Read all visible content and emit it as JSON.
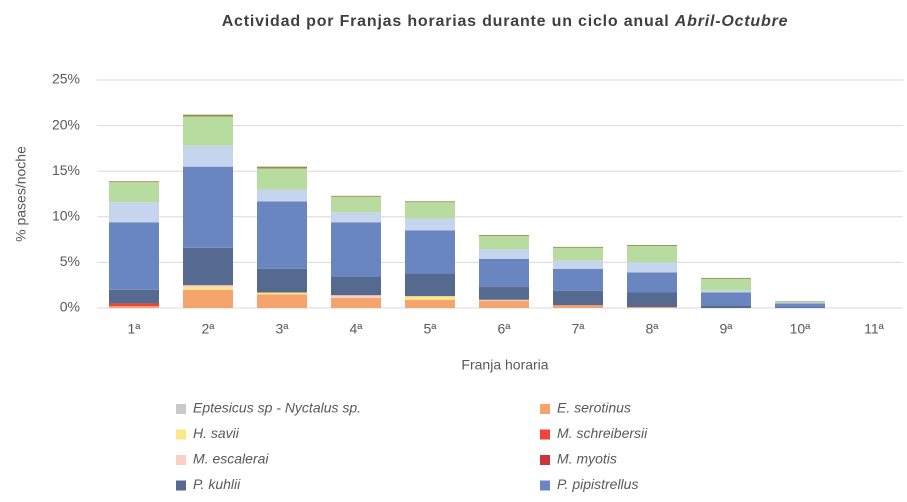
{
  "chart_data": {
    "type": "bar",
    "stacked": true,
    "title": [
      "Actividad por Franjas horarias durante un ciclo anual",
      "Abril-Octubre"
    ],
    "y_label": "% pases/noche",
    "x_label": "Franja horaria",
    "categories": [
      "1ª",
      "2ª",
      "3ª",
      "4ª",
      "5ª",
      "6ª",
      "7ª",
      "8ª",
      "9ª",
      "10ª",
      "11ª"
    ],
    "ylim": [
      0,
      25
    ],
    "yticks": [
      {
        "value": 0,
        "label": "0%"
      },
      {
        "value": 5,
        "label": "5%"
      },
      {
        "value": 10,
        "label": "10%"
      },
      {
        "value": 15,
        "label": "15%"
      },
      {
        "value": 20,
        "label": "20%"
      },
      {
        "value": 25,
        "label": "25%"
      }
    ],
    "grid": true,
    "series": [
      {
        "name": "Eptesicus sp - Nyctalus sp.",
        "color": "#c9c9c9",
        "values": [
          0,
          0,
          0,
          0,
          0,
          0,
          0,
          0,
          0,
          0,
          0
        ]
      },
      {
        "name": "E. serotinus",
        "color": "#f4a46c",
        "values": [
          0.2,
          2.0,
          1.5,
          1.1,
          0.9,
          0.8,
          0.3,
          0.1,
          0,
          0,
          0
        ]
      },
      {
        "name": "H. savii",
        "color": "#fde68a",
        "values": [
          0,
          0.3,
          0.2,
          0,
          0.4,
          0,
          0,
          0,
          0,
          0,
          0
        ]
      },
      {
        "name": "M. schreibersii",
        "color": "#f0433a",
        "values": [
          0.3,
          0,
          0,
          0,
          0,
          0,
          0,
          0,
          0,
          0,
          0
        ]
      },
      {
        "name": "M. escalerai",
        "color": "#fbd0c0",
        "values": [
          0,
          0.2,
          0,
          0.3,
          0,
          0.1,
          0,
          0,
          0,
          0,
          0
        ]
      },
      {
        "name": "M. myotis",
        "color": "#c8353a",
        "values": [
          0,
          0,
          0,
          0,
          0,
          0,
          0,
          0,
          0,
          0,
          0
        ]
      },
      {
        "name": "P. kuhlii",
        "color": "#56698f",
        "values": [
          1.5,
          4.1,
          2.6,
          2.0,
          2.5,
          1.4,
          1.6,
          1.6,
          0.3,
          0.1,
          0
        ]
      },
      {
        "name": "P. pipistrellus",
        "color": "#6a86c0",
        "values": [
          7.4,
          8.9,
          7.4,
          6.0,
          4.7,
          3.1,
          2.4,
          2.2,
          1.4,
          0.4,
          0
        ]
      },
      {
        "color": "#c6d5ee",
        "values": [
          2.2,
          2.3,
          1.3,
          1.1,
          1.3,
          1.0,
          0.9,
          1.1,
          0.2,
          0.1,
          0
        ]
      },
      {
        "color": "#b8dca0",
        "values": [
          2.2,
          3.2,
          2.3,
          1.7,
          1.8,
          1.5,
          1.4,
          1.8,
          1.3,
          0.1,
          0
        ]
      },
      {
        "color": "#9a8a50",
        "values": [
          0.1,
          0.2,
          0.2,
          0.1,
          0.1,
          0.1,
          0.1,
          0.1,
          0.1,
          0.05,
          0
        ]
      }
    ]
  }
}
